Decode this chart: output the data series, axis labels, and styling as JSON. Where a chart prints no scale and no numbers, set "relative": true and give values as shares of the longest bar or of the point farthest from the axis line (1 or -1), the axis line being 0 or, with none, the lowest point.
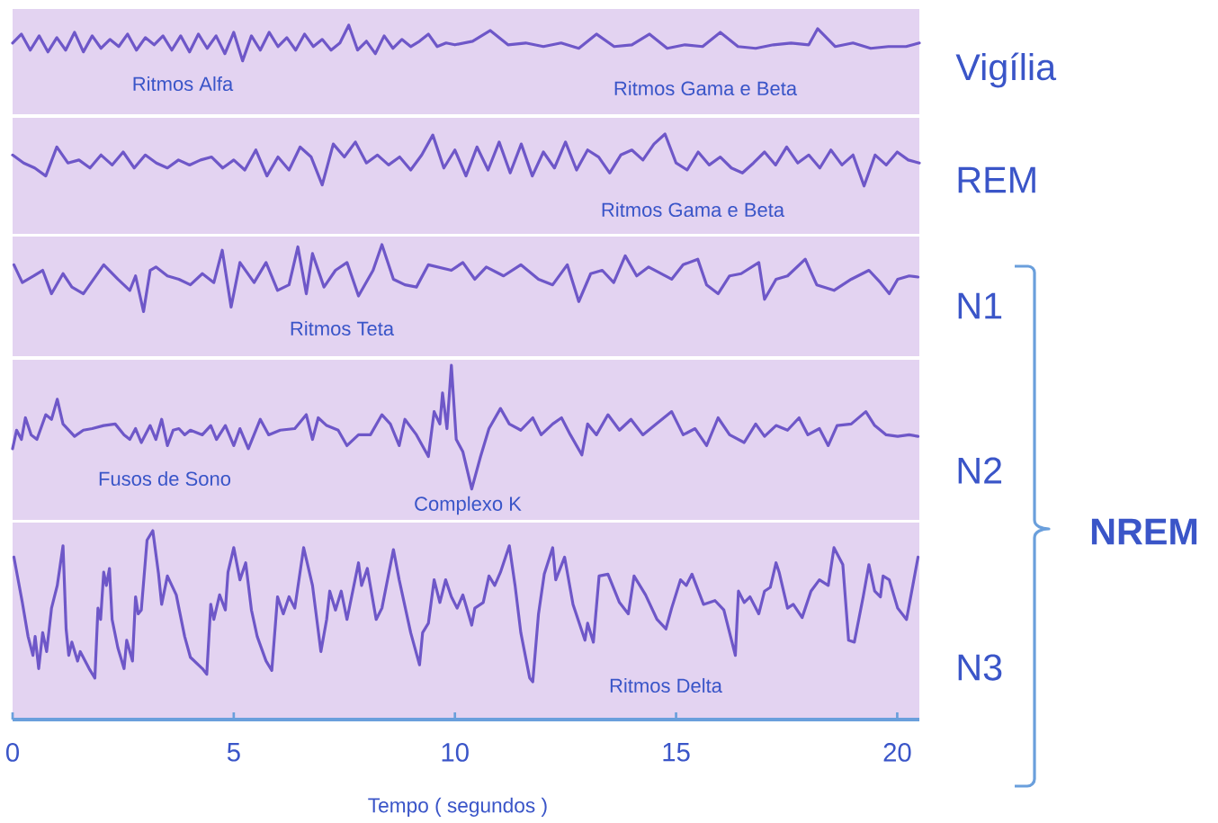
{
  "chart_data": [
    {
      "type": "line",
      "ylabel": "Vigília",
      "relative": true,
      "tick_labels": false,
      "xlim": [
        0,
        20.5
      ],
      "color": "#6e57c8",
      "annotations": [
        "Ritmos Alfa",
        "Ritmos Gama e Beta"
      ],
      "x": [
        0,
        0.2,
        0.4,
        0.6,
        0.8,
        1.0,
        1.2,
        1.4,
        1.6,
        1.8,
        2.0,
        2.2,
        2.4,
        2.6,
        2.8,
        3.0,
        3.2,
        3.4,
        3.6,
        3.8,
        4.0,
        4.2,
        4.4,
        4.6,
        4.8,
        5.0,
        5.2,
        5.4,
        5.6,
        5.8,
        6.0,
        6.2,
        6.4,
        6.6,
        6.8,
        7.0,
        7.2,
        7.4,
        7.6,
        7.8,
        8.0,
        8.2,
        8.4,
        8.6,
        8.8,
        9.0,
        9.2,
        9.4,
        9.6,
        9.8,
        10.0,
        10.4,
        10.8,
        11.2,
        11.6,
        12.0,
        12.4,
        12.8,
        13.2,
        13.6,
        14.0,
        14.4,
        14.8,
        15.2,
        15.6,
        16.0,
        16.4,
        16.8,
        17.2,
        17.6,
        18.0,
        18.2,
        18.6,
        19.0,
        19.4,
        19.8,
        20.2,
        20.5
      ],
      "values": [
        0.8,
        0.9,
        0.72,
        0.88,
        0.7,
        0.86,
        0.72,
        0.92,
        0.7,
        0.88,
        0.74,
        0.84,
        0.76,
        0.9,
        0.72,
        0.86,
        0.78,
        0.88,
        0.72,
        0.88,
        0.7,
        0.9,
        0.74,
        0.88,
        0.68,
        0.92,
        0.6,
        0.88,
        0.72,
        0.92,
        0.76,
        0.86,
        0.72,
        0.9,
        0.76,
        0.84,
        0.72,
        0.8,
        1.0,
        0.72,
        0.82,
        0.68,
        0.88,
        0.74,
        0.84,
        0.76,
        0.82,
        0.9,
        0.76,
        0.8,
        0.78,
        0.82,
        0.94,
        0.78,
        0.8,
        0.76,
        0.8,
        0.74,
        0.9,
        0.76,
        0.78,
        0.9,
        0.74,
        0.78,
        0.76,
        0.92,
        0.76,
        0.74,
        0.78,
        0.8,
        0.78,
        0.96,
        0.76,
        0.8,
        0.74,
        0.76,
        0.76,
        0.8
      ]
    },
    {
      "type": "line",
      "ylabel": "REM",
      "relative": true,
      "tick_labels": false,
      "xlim": [
        0,
        20.5
      ],
      "color": "#6e57c8",
      "annotations": [
        "Ritmos Gama e Beta"
      ],
      "x": [
        0,
        0.25,
        0.5,
        0.75,
        1,
        1.25,
        1.5,
        1.75,
        2,
        2.25,
        2.5,
        2.75,
        3,
        3.25,
        3.5,
        3.75,
        4,
        4.25,
        4.5,
        4.75,
        5,
        5.25,
        5.5,
        5.75,
        6,
        6.25,
        6.5,
        6.75,
        7,
        7.25,
        7.5,
        7.75,
        8,
        8.25,
        8.5,
        8.75,
        9,
        9.25,
        9.5,
        9.75,
        10,
        10.25,
        10.5,
        10.75,
        11,
        11.25,
        11.5,
        11.75,
        12,
        12.25,
        12.5,
        12.75,
        13,
        13.25,
        13.5,
        13.75,
        14,
        14.25,
        14.5,
        14.75,
        15,
        15.25,
        15.5,
        15.75,
        16,
        16.25,
        16.5,
        16.75,
        17,
        17.25,
        17.5,
        17.75,
        18,
        18.25,
        18.5,
        18.75,
        19,
        19.25,
        19.5,
        19.75,
        20,
        20.25,
        20.5
      ],
      "values": [
        0.79,
        0.71,
        0.66,
        0.58,
        0.87,
        0.71,
        0.74,
        0.66,
        0.79,
        0.69,
        0.82,
        0.66,
        0.79,
        0.71,
        0.66,
        0.74,
        0.69,
        0.74,
        0.77,
        0.66,
        0.74,
        0.64,
        0.84,
        0.58,
        0.77,
        0.64,
        0.87,
        0.77,
        0.49,
        0.9,
        0.77,
        0.92,
        0.71,
        0.79,
        0.69,
        0.77,
        0.64,
        0.79,
        0.99,
        0.66,
        0.84,
        0.58,
        0.87,
        0.64,
        0.92,
        0.61,
        0.9,
        0.58,
        0.82,
        0.66,
        0.92,
        0.64,
        0.84,
        0.77,
        0.61,
        0.79,
        0.84,
        0.74,
        0.9,
        1.0,
        0.71,
        0.64,
        0.82,
        0.69,
        0.77,
        0.66,
        0.61,
        0.71,
        0.82,
        0.69,
        0.87,
        0.71,
        0.79,
        0.66,
        0.84,
        0.69,
        0.79,
        0.48,
        0.79,
        0.69,
        0.82,
        0.74,
        0.71
      ]
    },
    {
      "type": "line",
      "ylabel": "N1",
      "relative": true,
      "tick_labels": false,
      "xlim": [
        0,
        20.5
      ],
      "color": "#6e57c8",
      "annotations": [
        "Ritmos Teta"
      ],
      "x": [
        0.03,
        0.22,
        0.48,
        0.68,
        0.88,
        1.14,
        1.34,
        1.6,
        2.06,
        2.38,
        2.65,
        2.78,
        2.96,
        3.11,
        3.24,
        3.5,
        3.76,
        4.02,
        4.29,
        4.55,
        4.74,
        4.94,
        5.14,
        5.46,
        5.73,
        5.99,
        6.25,
        6.45,
        6.64,
        6.78,
        7.04,
        7.3,
        7.56,
        7.82,
        8.15,
        8.35,
        8.61,
        8.87,
        9.13,
        9.4,
        9.92,
        10.18,
        10.45,
        10.71,
        11.1,
        11.49,
        11.89,
        12.21,
        12.54,
        12.8,
        13.07,
        13.33,
        13.59,
        13.85,
        14.11,
        14.38,
        14.9,
        15.16,
        15.49,
        15.69,
        15.95,
        16.21,
        16.47,
        16.87,
        17.0,
        17.26,
        17.52,
        17.92,
        18.18,
        18.57,
        18.96,
        19.36,
        19.62,
        19.82,
        20.01,
        20.27,
        20.47
      ],
      "values": [
        0.82,
        0.66,
        0.72,
        0.77,
        0.56,
        0.74,
        0.62,
        0.56,
        0.82,
        0.69,
        0.59,
        0.72,
        0.4,
        0.77,
        0.8,
        0.72,
        0.69,
        0.64,
        0.74,
        0.66,
        0.95,
        0.44,
        0.84,
        0.66,
        0.84,
        0.59,
        0.64,
        0.98,
        0.56,
        0.92,
        0.62,
        0.77,
        0.84,
        0.54,
        0.77,
        1.0,
        0.69,
        0.64,
        0.62,
        0.82,
        0.77,
        0.84,
        0.69,
        0.8,
        0.72,
        0.82,
        0.69,
        0.64,
        0.82,
        0.49,
        0.74,
        0.77,
        0.66,
        0.9,
        0.72,
        0.8,
        0.69,
        0.82,
        0.87,
        0.64,
        0.56,
        0.72,
        0.74,
        0.84,
        0.51,
        0.69,
        0.72,
        0.87,
        0.64,
        0.59,
        0.69,
        0.77,
        0.66,
        0.56,
        0.69,
        0.72,
        0.71
      ]
    },
    {
      "type": "line",
      "ylabel": "N2",
      "relative": true,
      "tick_labels": false,
      "xlim": [
        0,
        20.5
      ],
      "color": "#6e57c8",
      "annotations": [
        "Fusos de Sono",
        "Complexo K",
        "NREM"
      ],
      "x": [
        0,
        0.09,
        0.2,
        0.29,
        0.42,
        0.55,
        0.75,
        0.88,
        1.01,
        1.14,
        1.27,
        1.4,
        1.6,
        1.8,
        2.06,
        2.32,
        2.52,
        2.65,
        2.78,
        2.91,
        3.11,
        3.24,
        3.37,
        3.5,
        3.63,
        3.76,
        3.89,
        4.02,
        4.29,
        4.48,
        4.61,
        4.81,
        5.0,
        5.14,
        5.33,
        5.6,
        5.79,
        6.05,
        6.38,
        6.64,
        6.78,
        6.91,
        7.1,
        7.36,
        7.56,
        7.82,
        8.09,
        8.35,
        8.54,
        8.74,
        8.87,
        9.13,
        9.4,
        9.53,
        9.66,
        9.72,
        9.82,
        9.92,
        10.03,
        10.18,
        10.38,
        10.58,
        10.77,
        11.03,
        11.23,
        11.49,
        11.76,
        11.95,
        12.21,
        12.41,
        12.61,
        12.87,
        13.0,
        13.2,
        13.46,
        13.72,
        13.98,
        14.25,
        14.51,
        14.9,
        15.16,
        15.43,
        15.69,
        15.95,
        16.21,
        16.54,
        16.8,
        17.0,
        17.26,
        17.52,
        17.78,
        17.98,
        18.24,
        18.44,
        18.64,
        18.96,
        19.29,
        19.49,
        19.75,
        20.01,
        20.27,
        20.47
      ],
      "values": [
        0.46,
        0.58,
        0.52,
        0.66,
        0.55,
        0.52,
        0.68,
        0.65,
        0.78,
        0.62,
        0.58,
        0.54,
        0.58,
        0.59,
        0.61,
        0.62,
        0.55,
        0.52,
        0.59,
        0.5,
        0.61,
        0.52,
        0.65,
        0.48,
        0.58,
        0.59,
        0.55,
        0.58,
        0.55,
        0.61,
        0.52,
        0.61,
        0.48,
        0.59,
        0.46,
        0.65,
        0.55,
        0.58,
        0.59,
        0.68,
        0.52,
        0.66,
        0.61,
        0.58,
        0.48,
        0.55,
        0.55,
        0.68,
        0.62,
        0.48,
        0.65,
        0.55,
        0.41,
        0.7,
        0.62,
        0.82,
        0.59,
        1.0,
        0.52,
        0.44,
        0.2,
        0.41,
        0.59,
        0.72,
        0.62,
        0.58,
        0.66,
        0.55,
        0.62,
        0.66,
        0.55,
        0.42,
        0.62,
        0.55,
        0.68,
        0.58,
        0.65,
        0.55,
        0.61,
        0.7,
        0.55,
        0.59,
        0.48,
        0.66,
        0.55,
        0.5,
        0.62,
        0.54,
        0.61,
        0.58,
        0.66,
        0.55,
        0.59,
        0.48,
        0.61,
        0.62,
        0.7,
        0.61,
        0.55,
        0.54,
        0.55,
        0.54
      ]
    },
    {
      "type": "line",
      "ylabel": "N3",
      "relative": true,
      "xlim": [
        0,
        20.5
      ],
      "xticks": [
        0,
        5,
        10,
        15,
        20
      ],
      "xlabel": "Tempo ( segundos )",
      "color": "#6e57c8",
      "annotations": [
        "Ritmos Delta"
      ],
      "x": [
        0.03,
        0.22,
        0.35,
        0.46,
        0.51,
        0.59,
        0.68,
        0.77,
        0.88,
        1.01,
        1.14,
        1.21,
        1.27,
        1.34,
        1.47,
        1.53,
        1.73,
        1.86,
        1.93,
        1.99,
        2.06,
        2.12,
        2.19,
        2.25,
        2.38,
        2.52,
        2.58,
        2.71,
        2.78,
        2.84,
        2.91,
        3.04,
        3.17,
        3.3,
        3.37,
        3.5,
        3.7,
        3.76,
        3.89,
        4.02,
        4.29,
        4.39,
        4.48,
        4.55,
        4.68,
        4.81,
        4.87,
        5.0,
        5.14,
        5.27,
        5.4,
        5.53,
        5.73,
        5.86,
        5.99,
        6.12,
        6.25,
        6.38,
        6.58,
        6.78,
        6.97,
        7.1,
        7.17,
        7.3,
        7.43,
        7.56,
        7.82,
        7.89,
        8.02,
        8.22,
        8.35,
        8.61,
        8.74,
        9.0,
        9.2,
        9.27,
        9.4,
        9.53,
        9.66,
        9.79,
        9.92,
        10.05,
        10.18,
        10.38,
        10.45,
        10.64,
        10.77,
        10.9,
        11.03,
        11.23,
        11.36,
        11.49,
        11.69,
        11.76,
        11.89,
        12.02,
        12.21,
        12.28,
        12.48,
        12.67,
        12.94,
        13.0,
        13.13,
        13.26,
        13.46,
        13.72,
        13.92,
        14.05,
        14.31,
        14.57,
        14.77,
        14.9,
        15.1,
        15.23,
        15.36,
        15.62,
        15.88,
        16.08,
        16.34,
        16.41,
        16.54,
        16.67,
        16.87,
        17.0,
        17.13,
        17.26,
        17.33,
        17.52,
        17.65,
        17.85,
        18.05,
        18.24,
        18.44,
        18.57,
        18.77,
        18.9,
        19.03,
        19.23,
        19.36,
        19.49,
        19.62,
        19.68,
        19.82,
        20.01,
        20.21,
        20.47
      ],
      "values": [
        0.86,
        0.62,
        0.44,
        0.34,
        0.44,
        0.27,
        0.46,
        0.36,
        0.59,
        0.71,
        0.92,
        0.48,
        0.34,
        0.41,
        0.31,
        0.36,
        0.27,
        0.22,
        0.59,
        0.53,
        0.78,
        0.71,
        0.8,
        0.53,
        0.38,
        0.27,
        0.42,
        0.31,
        0.65,
        0.56,
        0.58,
        0.95,
        1.0,
        0.77,
        0.61,
        0.76,
        0.66,
        0.59,
        0.44,
        0.33,
        0.27,
        0.24,
        0.61,
        0.53,
        0.66,
        0.58,
        0.78,
        0.91,
        0.74,
        0.83,
        0.58,
        0.44,
        0.31,
        0.26,
        0.65,
        0.56,
        0.65,
        0.59,
        0.91,
        0.71,
        0.36,
        0.53,
        0.68,
        0.58,
        0.68,
        0.53,
        0.83,
        0.71,
        0.8,
        0.53,
        0.59,
        0.9,
        0.74,
        0.46,
        0.29,
        0.46,
        0.51,
        0.74,
        0.62,
        0.74,
        0.65,
        0.59,
        0.66,
        0.5,
        0.59,
        0.62,
        0.76,
        0.71,
        0.78,
        0.92,
        0.71,
        0.46,
        0.22,
        0.2,
        0.56,
        0.77,
        0.91,
        0.74,
        0.86,
        0.61,
        0.42,
        0.51,
        0.41,
        0.76,
        0.77,
        0.62,
        0.56,
        0.76,
        0.66,
        0.53,
        0.48,
        0.59,
        0.74,
        0.71,
        0.77,
        0.61,
        0.63,
        0.58,
        0.34,
        0.68,
        0.62,
        0.65,
        0.56,
        0.68,
        0.7,
        0.83,
        0.78,
        0.59,
        0.61,
        0.54,
        0.68,
        0.74,
        0.71,
        0.91,
        0.82,
        0.42,
        0.41,
        0.65,
        0.82,
        0.68,
        0.65,
        0.76,
        0.74,
        0.59,
        0.53,
        0.86
      ]
    }
  ]
}
